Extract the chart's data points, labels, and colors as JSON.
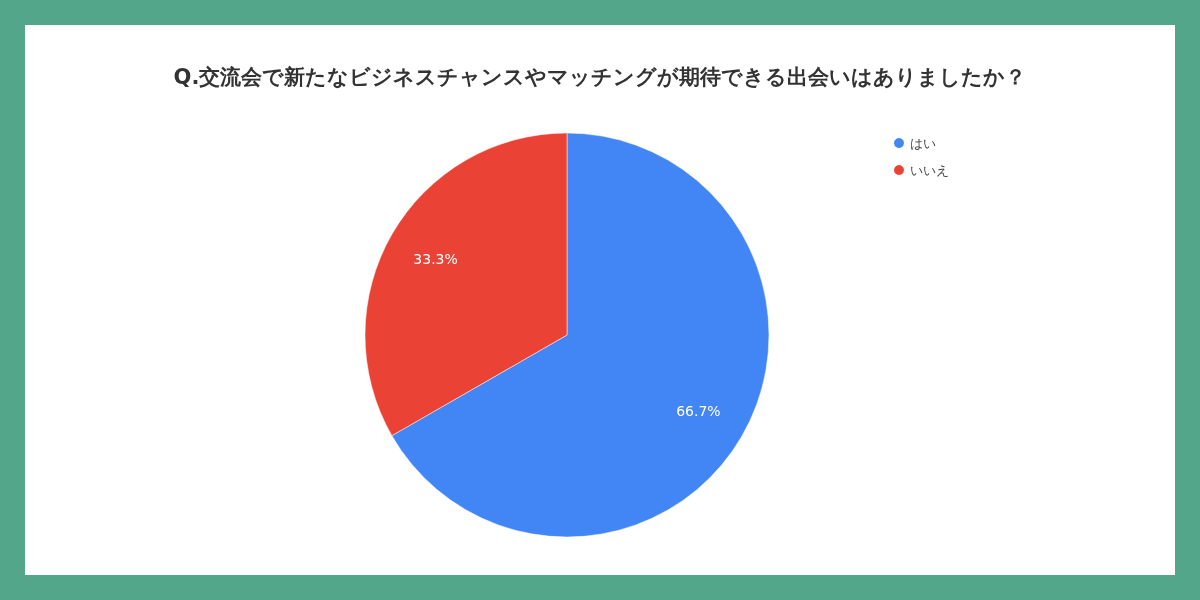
{
  "chart_data": {
    "type": "pie",
    "title": "Q.交流会で新たなビジネスチャンスやマッチングが期待できる出会いはありましたか？",
    "categories": [
      "はい",
      "いいえ"
    ],
    "values": [
      66.7,
      33.3
    ],
    "colors": [
      "#4285f4",
      "#ea4335"
    ],
    "value_labels": [
      "66.7%",
      "33.3%"
    ],
    "legend": "top right"
  }
}
